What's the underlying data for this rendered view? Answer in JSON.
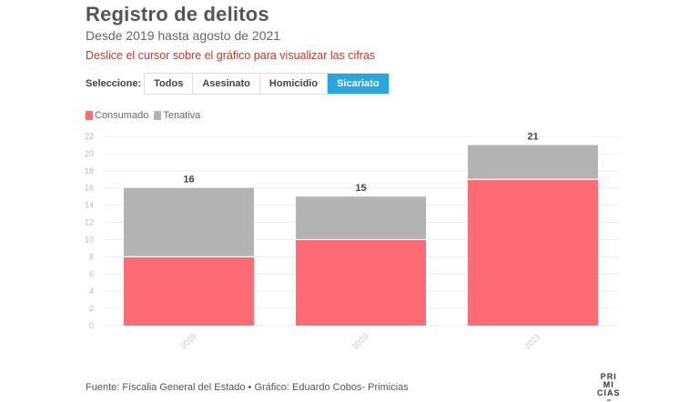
{
  "header": {
    "title": "Registro de delitos",
    "subtitle": "Desde 2019 hasta agosto de 2021",
    "hint": "Deslice el cursor sobre el gráfico para visualizar las cifras"
  },
  "selector": {
    "label": "Seleccione:",
    "options": [
      "Todos",
      "Asesinato",
      "Homicidio",
      "Sicariato"
    ],
    "selected": "Sicariato"
  },
  "legend": {
    "items": [
      {
        "label": "Consumado",
        "color": "#ff6b74"
      },
      {
        "label": "Tenativa",
        "color": "#b3b3b3"
      }
    ]
  },
  "footer": {
    "source": "Fuente: Físcalia General del Estado • Gráfico: Eduardo Cobos- Primicias",
    "logo_lines": [
      "PRI",
      "MI",
      "CIAS"
    ]
  },
  "chart_data": {
    "type": "bar",
    "stacked": true,
    "categories": [
      "2019",
      "2020",
      "2021"
    ],
    "series": [
      {
        "name": "Consumado",
        "values": [
          8,
          10,
          17
        ],
        "color": "#ff6b74"
      },
      {
        "name": "Tenativa",
        "values": [
          8,
          5,
          4
        ],
        "color": "#b3b3b3"
      }
    ],
    "totals": [
      16,
      15,
      21
    ],
    "ylim": [
      0,
      22
    ],
    "yticks": [
      0,
      2,
      4,
      6,
      8,
      10,
      12,
      14,
      16,
      18,
      20,
      22
    ],
    "grid": true
  }
}
